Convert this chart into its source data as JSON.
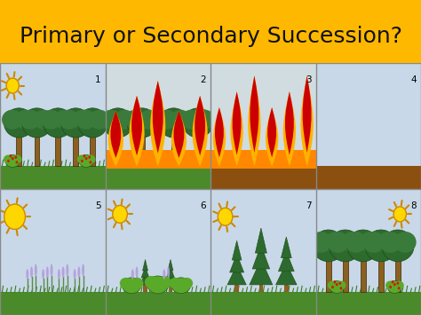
{
  "title": "Primary or Secondary Succession?",
  "title_fontsize": 18,
  "title_color": "#111111",
  "title_bg": "#FFB800",
  "sky_color": "#c8d8e8",
  "sky_color2": "#d0dce8",
  "ground_green": "#4a8a2a",
  "ground_dark": "#7a4a1a",
  "tree_trunk_color": "#8B6020",
  "tree_leaf_dark": "#2d6a2d",
  "bush_color": "#5aaa2a",
  "sun_color": "#FFD700",
  "sun_ray_color": "#FFA500",
  "pine_color": "#2d6a2d",
  "lavender_color": "#b39ddb",
  "flame_base": "#FF8C00",
  "flame_mid": "#FFB300",
  "flame_red": "#CC0000",
  "border_color": "#888888"
}
